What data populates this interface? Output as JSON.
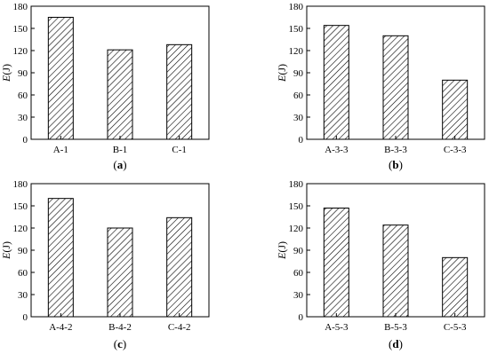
{
  "chart_data": [
    {
      "type": "bar",
      "panel_label": "a",
      "categories": [
        "A-1",
        "B-1",
        "C-1"
      ],
      "values": [
        165,
        121,
        128
      ],
      "ylabel_var": "E",
      "ylabel_unit": "(J)",
      "ylim": [
        0,
        180
      ],
      "yticks": [
        0,
        30,
        60,
        90,
        120,
        150,
        180
      ],
      "grid": false,
      "bar_fill": "hatched"
    },
    {
      "type": "bar",
      "panel_label": "b",
      "categories": [
        "A-3-3",
        "B-3-3",
        "C-3-3"
      ],
      "values": [
        154,
        140,
        80
      ],
      "ylabel_var": "E",
      "ylabel_unit": "(J)",
      "ylim": [
        0,
        180
      ],
      "yticks": [
        0,
        30,
        60,
        90,
        120,
        150,
        180
      ],
      "grid": false,
      "bar_fill": "hatched"
    },
    {
      "type": "bar",
      "panel_label": "c",
      "categories": [
        "A-4-2",
        "B-4-2",
        "C-4-2"
      ],
      "values": [
        160,
        120,
        134
      ],
      "ylabel_var": "E",
      "ylabel_unit": "(J)",
      "ylim": [
        0,
        180
      ],
      "yticks": [
        0,
        30,
        60,
        90,
        120,
        150,
        180
      ],
      "grid": false,
      "bar_fill": "hatched"
    },
    {
      "type": "bar",
      "panel_label": "d",
      "categories": [
        "A-5-3",
        "B-5-3",
        "C-5-3"
      ],
      "values": [
        147,
        124,
        80
      ],
      "ylabel_var": "E",
      "ylabel_unit": "(J)",
      "ylim": [
        0,
        180
      ],
      "yticks": [
        0,
        30,
        60,
        90,
        120,
        150,
        180
      ],
      "grid": false,
      "bar_fill": "hatched"
    }
  ],
  "colors": {
    "axis": "#000000",
    "bar_stroke": "#000000",
    "hatch": "#000000",
    "background": "#ffffff"
  }
}
